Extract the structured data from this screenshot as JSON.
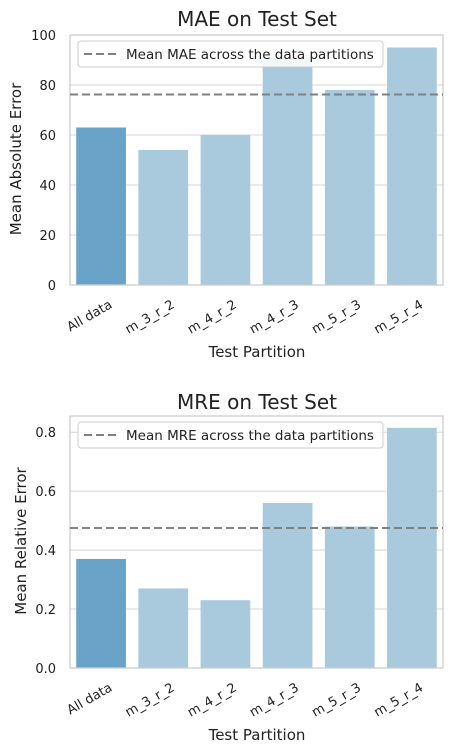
{
  "chart_data": [
    {
      "type": "bar",
      "title": "MAE on Test Set",
      "xlabel": "Test Partition",
      "ylabel": "Mean Absolute Error",
      "categories": [
        "All data",
        "m_3_r_2",
        "m_4_r_2",
        "m_4_r_3",
        "m_5_r_3",
        "m_5_r_4"
      ],
      "values": [
        63,
        54,
        60,
        91,
        78,
        95
      ],
      "ylim": [
        0,
        100
      ],
      "yticks": [
        "0",
        "20",
        "40",
        "60",
        "80",
        "100"
      ],
      "reference_line": {
        "label": "Mean MAE across the data partitions",
        "value": 76.2
      },
      "grid": true,
      "legend": "top-left",
      "colors": {
        "highlight": "#6aa3c8",
        "bar": "#a9cadd",
        "refline": "#808080"
      }
    },
    {
      "type": "bar",
      "title": "MRE on Test Set",
      "xlabel": "Test Partition",
      "ylabel": "Mean Relative Error",
      "categories": [
        "All data",
        "m_3_r_2",
        "m_4_r_2",
        "m_4_r_3",
        "m_5_r_3",
        "m_5_r_4"
      ],
      "values": [
        0.37,
        0.27,
        0.23,
        0.56,
        0.48,
        0.815
      ],
      "ylim": [
        0,
        0.855
      ],
      "yticks": [
        "0.0",
        "0.2",
        "0.4",
        "0.6",
        "0.8"
      ],
      "reference_line": {
        "label": "Mean MRE across the data partitions",
        "value": 0.475
      },
      "grid": true,
      "legend": "top-left",
      "colors": {
        "highlight": "#6aa3c8",
        "bar": "#a9cadd",
        "refline": "#808080"
      }
    }
  ]
}
